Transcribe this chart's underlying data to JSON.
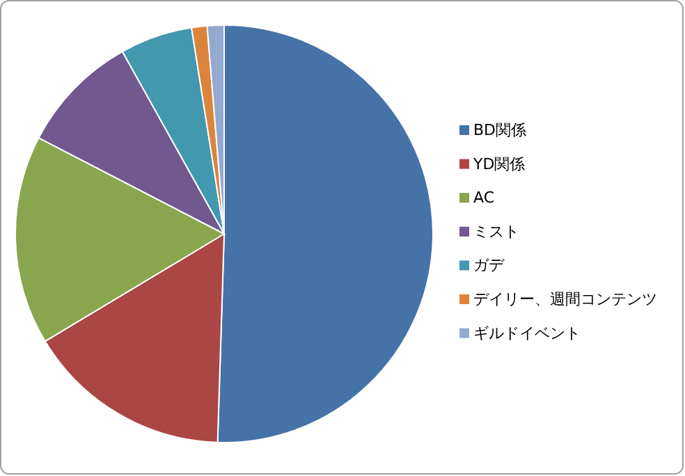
{
  "chart_data": {
    "type": "pie",
    "legend": "right",
    "categories": [
      "BD関係",
      "YD関係",
      "AC",
      "ミスト",
      "ガデ",
      "デイリー、週間コンテンツ",
      "ギルドイベント"
    ],
    "values": [
      50.5,
      15.9,
      16.2,
      9.3,
      5.6,
      1.2,
      1.3
    ],
    "colors": [
      "#4572a7",
      "#aa4643",
      "#89a54e",
      "#71588f",
      "#4198af",
      "#db843d",
      "#93a9cf"
    ]
  }
}
